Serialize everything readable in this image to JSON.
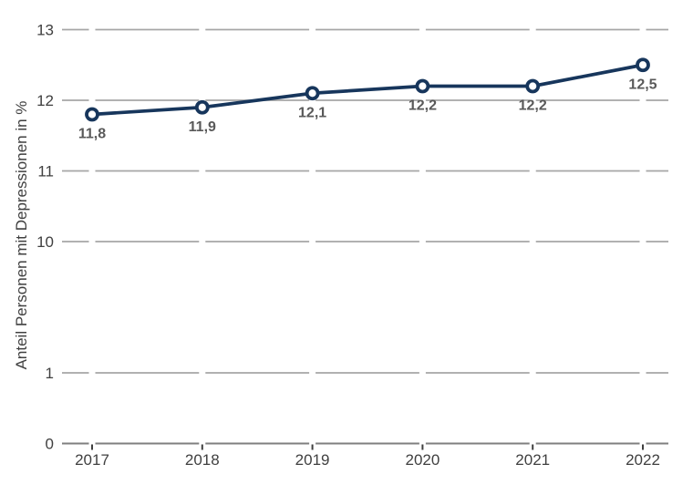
{
  "chart_data": {
    "type": "line",
    "title": "",
    "categories": [
      "2017",
      "2018",
      "2019",
      "2020",
      "2021",
      "2022"
    ],
    "values": [
      11.8,
      11.9,
      12.1,
      12.2,
      12.2,
      12.5
    ],
    "data_labels": [
      "11,8",
      "11,9",
      "12,1",
      "12,2",
      "12,2",
      "12,5"
    ],
    "xlabel": "",
    "ylabel": "Anteil Personen mit Depressionen in %",
    "y_ticks": [
      "13",
      "12",
      "11",
      "10",
      "1",
      "0"
    ],
    "y_tick_values": [
      13,
      12,
      11,
      10,
      1,
      0
    ],
    "axis_break_between": [
      1,
      10
    ],
    "grid": true,
    "legend_position": "none",
    "marker_style": "open-circle",
    "colors": {
      "line": "#17365C",
      "marker_fill": "#FFFFFF",
      "grid": "#A6A6A6",
      "axis": "#7F7F7F",
      "tick": "#3F3F3F",
      "tick_label": "#404040",
      "data_label": "#595959",
      "background": "#FFFFFF"
    }
  }
}
